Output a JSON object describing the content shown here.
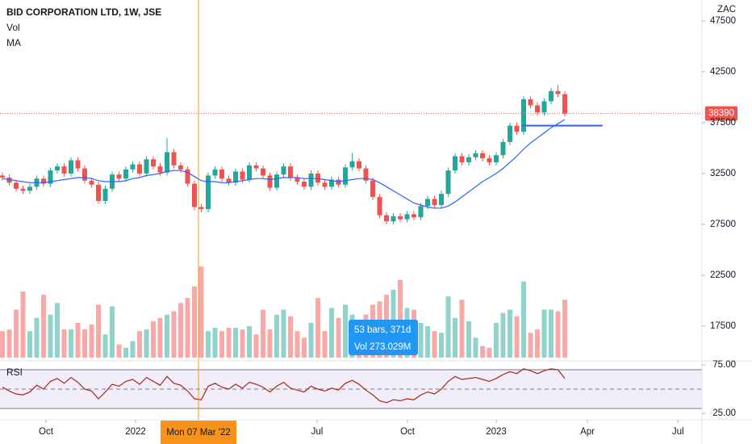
{
  "chart_data": {
    "type": "candlestick",
    "title": "BID CORPORATION LTD, 1W, JSE",
    "vol_label": "Vol",
    "ma_label": "MA",
    "currency": "ZAC",
    "rsi_label": "RSI",
    "up_color": "#26a69a",
    "down_color": "#ef5350",
    "ma_color": "#2962ff",
    "rsi_color": "#a52714",
    "xlim": [
      -0.353,
      102
    ],
    "xticks": [
      {
        "value": 6.35,
        "label": "Oct"
      },
      {
        "value": 19.41,
        "label": "2022"
      },
      {
        "value": 45.88,
        "label": "Jul"
      },
      {
        "value": 59.06,
        "label": "Oct"
      },
      {
        "value": 72,
        "label": "2023"
      },
      {
        "value": 85.3,
        "label": "Apr"
      },
      {
        "value": 98.5,
        "label": "Jul"
      }
    ],
    "ylim": [
      14250,
      49550
    ],
    "yticks": [
      47500,
      42500,
      37500,
      32500,
      27500,
      22500,
      17500
    ],
    "vol_lim": [
      0,
      6
    ],
    "rsi_lim": [
      25,
      75
    ],
    "rsi_ticks": [
      {
        "value": 75,
        "label": "75.00"
      },
      {
        "value": 25,
        "label": "25.00"
      }
    ],
    "rsi_levels": [
      70,
      50,
      30
    ],
    "open": [
      32300,
      32100,
      31600,
      31000,
      30800,
      31200,
      32000,
      31500,
      32800,
      33200,
      32500,
      33800,
      33000,
      31800,
      31400,
      29800,
      31000,
      32400,
      32000,
      32900,
      33400,
      32500,
      33900,
      33200,
      32600,
      34600,
      33300,
      32900,
      31500,
      29200,
      29000,
      32300,
      32900,
      32000,
      31600,
      32700,
      31900,
      33300,
      33000,
      32300,
      31100,
      32400,
      33200,
      32100,
      31700,
      31200,
      32500,
      31600,
      31200,
      31900,
      31400,
      33100,
      33700,
      33000,
      31800,
      30200,
      28400,
      27800,
      28300,
      28000,
      28500,
      28200,
      29300,
      30000,
      29400,
      30500,
      32800,
      34200,
      33600,
      34100,
      34500,
      34000,
      33600,
      34300,
      35600,
      37200,
      36600,
      39800,
      39200,
      38500,
      39600,
      40600,
      40300
    ],
    "high": [
      32600,
      32400,
      31900,
      31300,
      31500,
      32300,
      32300,
      33100,
      33500,
      33500,
      34100,
      34100,
      33300,
      32100,
      31700,
      31300,
      32700,
      32700,
      33200,
      33700,
      33700,
      34200,
      34200,
      33500,
      36000,
      34900,
      33600,
      33200,
      31800,
      29500,
      32600,
      33200,
      33200,
      32300,
      33000,
      33000,
      33600,
      33600,
      33300,
      32600,
      32700,
      33500,
      33500,
      32400,
      32000,
      32800,
      32800,
      31900,
      32200,
      32200,
      33400,
      34500,
      34000,
      33300,
      32100,
      30500,
      28700,
      28600,
      28600,
      28800,
      28800,
      29600,
      30300,
      30300,
      30800,
      33100,
      34500,
      34500,
      34400,
      34800,
      34800,
      34300,
      34600,
      35900,
      37500,
      37500,
      40100,
      40100,
      39500,
      39900,
      40900,
      41200,
      40600
    ],
    "low": [
      31800,
      31300,
      30700,
      30500,
      30500,
      30900,
      31200,
      31200,
      32500,
      32200,
      32200,
      32700,
      31500,
      31100,
      29500,
      29500,
      30700,
      31700,
      31700,
      32600,
      32200,
      32200,
      32900,
      32300,
      32300,
      33000,
      32600,
      31200,
      28900,
      28700,
      28700,
      32000,
      31700,
      31300,
      31300,
      31600,
      31600,
      32700,
      32000,
      30800,
      30800,
      32100,
      31800,
      31400,
      30900,
      30900,
      31300,
      30900,
      30900,
      31100,
      31100,
      32800,
      32700,
      31500,
      29900,
      28100,
      27500,
      27500,
      27700,
      27700,
      27900,
      27900,
      29000,
      29100,
      29100,
      30200,
      32500,
      33300,
      33300,
      33800,
      33700,
      33300,
      33300,
      34000,
      35300,
      36300,
      36300,
      38900,
      38200,
      38200,
      39300,
      40000,
      38100
    ],
    "close": [
      32100,
      31600,
      31000,
      30800,
      31200,
      32000,
      31500,
      32800,
      33200,
      32500,
      33800,
      33000,
      31800,
      31400,
      29800,
      31000,
      32400,
      32000,
      32900,
      33400,
      32500,
      33900,
      33200,
      32600,
      34600,
      33300,
      32900,
      31500,
      29200,
      29000,
      32300,
      32900,
      32000,
      31600,
      32700,
      31900,
      33300,
      33000,
      32300,
      31100,
      32400,
      33200,
      32100,
      31700,
      31200,
      32500,
      31600,
      31200,
      31900,
      31400,
      33100,
      33700,
      33000,
      31800,
      30200,
      28400,
      27800,
      28300,
      28000,
      28500,
      28200,
      29300,
      30000,
      29400,
      30500,
      32800,
      34200,
      33600,
      34100,
      34500,
      34000,
      33600,
      34300,
      35600,
      37200,
      36600,
      39800,
      39200,
      38500,
      39600,
      40600,
      40300,
      38390
    ],
    "volume": [
      1.6,
      1.7,
      2.9,
      4.0,
      1.6,
      2.4,
      3.8,
      2.6,
      3.3,
      1.7,
      1.7,
      2.1,
      1.7,
      2.0,
      3.2,
      1.4,
      3.1,
      0.8,
      0.6,
      1.0,
      1.6,
      1.7,
      2.2,
      2.4,
      2.6,
      2.8,
      3.3,
      3.6,
      4.3,
      5.5,
      1.6,
      1.8,
      1.6,
      1.8,
      1.8,
      1.7,
      1.9,
      1.4,
      2.9,
      1.7,
      2.6,
      2.9,
      2.5,
      1.6,
      1.2,
      2.1,
      3.6,
      1.6,
      3.0,
      2.4,
      3.2,
      2.6,
      1.7,
      2.6,
      3.2,
      3.4,
      3.8,
      4.1,
      4.7,
      3.0,
      2.9,
      2.1,
      1.9,
      1.6,
      1.5,
      3.7,
      2.4,
      3.5,
      2.2,
      1.2,
      0.7,
      0.6,
      2.1,
      2.7,
      2.9,
      2.5,
      4.6,
      1.5,
      1.7,
      2.9,
      2.9,
      2.8,
      3.5
    ],
    "ma": [
      32000,
      31900,
      31800,
      31700,
      31600,
      31600,
      31600,
      31700,
      31800,
      31900,
      32000,
      32100,
      32100,
      32000,
      31800,
      31700,
      31700,
      31700,
      31800,
      32000,
      32100,
      32300,
      32400,
      32500,
      32700,
      32800,
      32800,
      32600,
      32200,
      31800,
      31700,
      31700,
      31600,
      31600,
      31700,
      31800,
      31900,
      32000,
      32000,
      31900,
      32000,
      32100,
      32100,
      32100,
      32000,
      32000,
      32000,
      31900,
      31800,
      31700,
      31800,
      31900,
      32000,
      32000,
      31900,
      31600,
      31200,
      30800,
      30400,
      30000,
      29600,
      29400,
      29200,
      29100,
      29100,
      29300,
      29700,
      30200,
      30700,
      31200,
      31700,
      32100,
      32500,
      33000,
      33600,
      34200,
      34900,
      35500,
      36000,
      36500,
      37000,
      37400,
      37800
    ],
    "rsi": [
      52,
      48,
      45,
      44,
      47,
      54,
      50,
      58,
      61,
      56,
      62,
      57,
      50,
      48,
      40,
      47,
      55,
      53,
      58,
      60,
      55,
      62,
      58,
      54,
      63,
      56,
      54,
      48,
      40,
      39,
      53,
      56,
      52,
      50,
      55,
      51,
      57,
      55,
      52,
      47,
      53,
      57,
      51,
      49,
      47,
      53,
      50,
      48,
      51,
      49,
      56,
      59,
      55,
      49,
      44,
      38,
      36,
      39,
      38,
      40,
      39,
      44,
      47,
      45,
      50,
      58,
      63,
      60,
      61,
      62,
      60,
      58,
      61,
      65,
      68,
      66,
      71,
      69,
      66,
      69,
      71,
      70,
      61
    ],
    "level_line": 37200,
    "crosshair": {
      "value": 28.59,
      "label": "Mon 07 Mar '22"
    },
    "measure": {
      "bars_label": "53 bars, 371d",
      "volume_label": "Vol 273.029M"
    }
  }
}
